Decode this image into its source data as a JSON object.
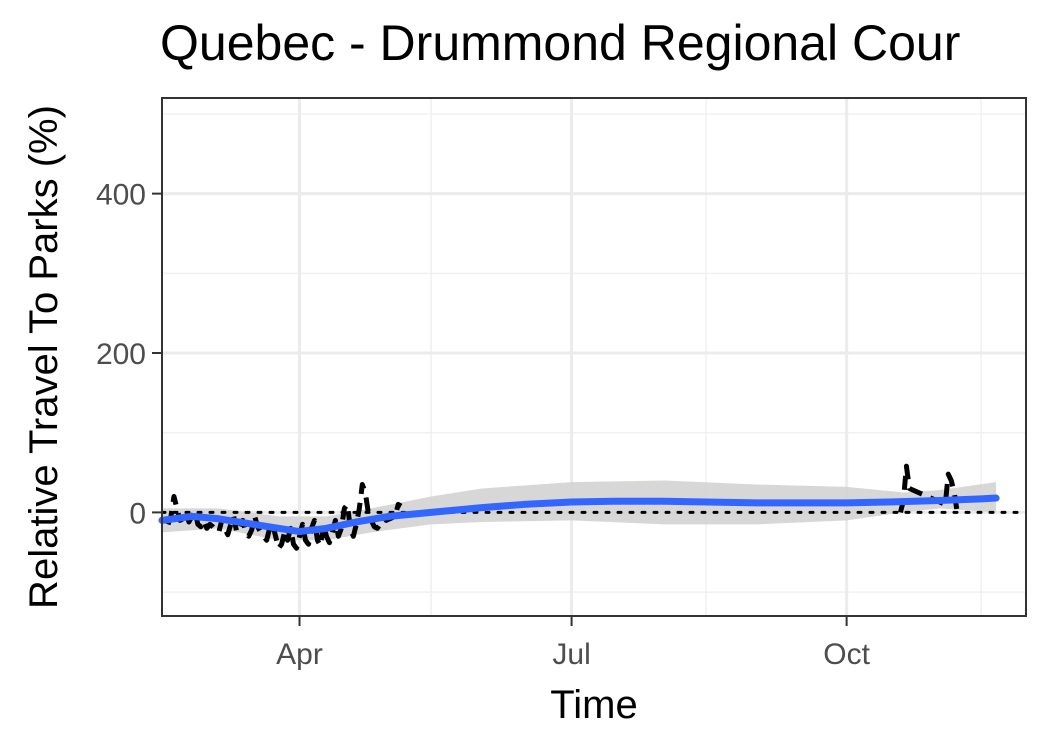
{
  "chart_data": {
    "type": "line",
    "title": "Quebec - Drummond Regional Cour",
    "xlabel": "Time",
    "ylabel": "Relative Travel To Parks (%)",
    "x_range": [
      "2020-02-15",
      "2020-11-30"
    ],
    "ylim": [
      -130,
      520
    ],
    "x_ticks": [
      {
        "date": "2020-04-01",
        "label": "Apr"
      },
      {
        "date": "2020-07-01",
        "label": "Jul"
      },
      {
        "date": "2020-10-01",
        "label": "Oct"
      }
    ],
    "x_minor_ticks": [
      "2020-02-15",
      "2020-05-15",
      "2020-08-15",
      "2020-11-15"
    ],
    "y_ticks": [
      0,
      200,
      400
    ],
    "y_minor_ticks": [
      -100,
      100,
      300,
      500
    ],
    "grid": true,
    "reference_line": {
      "y": 0,
      "style": "dotted",
      "color": "#000000"
    },
    "series": [
      {
        "role": "observed",
        "style": "dashed",
        "color": "#000000",
        "points": [
          [
            "2020-02-17",
            -15
          ],
          [
            "2020-02-18",
            -5
          ],
          [
            "2020-02-19",
            20
          ],
          [
            "2020-02-20",
            5
          ],
          [
            "2020-02-21",
            -10
          ],
          [
            "2020-02-22",
            -8
          ],
          [
            "2020-02-23",
            0
          ],
          [
            "2020-02-24",
            -12
          ],
          [
            "2020-02-25",
            -5
          ],
          [
            "2020-02-26",
            2
          ],
          [
            "2020-02-27",
            -15
          ],
          [
            "2020-02-28",
            -18
          ],
          [
            "2020-02-29",
            -10
          ],
          [
            "2020-03-01",
            -20
          ],
          [
            "2020-03-02",
            -15
          ],
          [
            "2020-03-03",
            -18
          ],
          [
            "2020-03-04",
            -22
          ],
          [
            "2020-03-05",
            -25
          ],
          [
            "2020-03-06",
            -10
          ],
          [
            "2020-03-07",
            -20
          ],
          [
            "2020-03-08",
            -28
          ],
          [
            "2020-03-09",
            -15
          ],
          [
            "2020-03-10",
            -5
          ],
          [
            "2020-03-11",
            -25
          ],
          [
            "2020-03-12",
            -20
          ],
          [
            "2020-03-13",
            -10
          ],
          [
            "2020-03-14",
            -25
          ],
          [
            "2020-03-15",
            -30
          ],
          [
            "2020-03-16",
            -22
          ],
          [
            "2020-03-17",
            -5
          ],
          [
            "2020-03-18",
            -18
          ],
          [
            "2020-03-19",
            -25
          ],
          [
            "2020-03-20",
            -30
          ],
          [
            "2020-03-21",
            -35
          ],
          [
            "2020-03-22",
            -20
          ],
          [
            "2020-03-23",
            -15
          ],
          [
            "2020-03-24",
            -30
          ],
          [
            "2020-03-25",
            -45
          ],
          [
            "2020-03-26",
            -40
          ],
          [
            "2020-03-27",
            -25
          ],
          [
            "2020-03-28",
            -35
          ],
          [
            "2020-03-29",
            -20
          ],
          [
            "2020-03-30",
            -40
          ],
          [
            "2020-03-31",
            -45
          ],
          [
            "2020-04-01",
            -30
          ],
          [
            "2020-04-02",
            -15
          ],
          [
            "2020-04-03",
            -35
          ],
          [
            "2020-04-04",
            -40
          ],
          [
            "2020-04-05",
            -20
          ],
          [
            "2020-04-06",
            -10
          ],
          [
            "2020-04-07",
            -35
          ],
          [
            "2020-04-08",
            -42
          ],
          [
            "2020-04-09",
            -15
          ],
          [
            "2020-04-10",
            -30
          ],
          [
            "2020-04-11",
            -38
          ],
          [
            "2020-04-12",
            -25
          ],
          [
            "2020-04-13",
            -10
          ],
          [
            "2020-04-14",
            -30
          ],
          [
            "2020-04-15",
            -20
          ],
          [
            "2020-04-16",
            5
          ],
          [
            "2020-04-17",
            10
          ],
          [
            "2020-04-18",
            -20
          ],
          [
            "2020-04-19",
            -30
          ],
          [
            "2020-04-20",
            -15
          ],
          [
            "2020-04-21",
            5
          ],
          [
            "2020-04-22",
            35
          ],
          [
            "2020-04-23",
            25
          ],
          [
            "2020-04-24",
            0
          ],
          [
            "2020-04-25",
            -10
          ],
          [
            "2020-04-26",
            -18
          ],
          [
            "2020-04-27",
            -20
          ],
          [
            "2020-04-28",
            -15
          ],
          [
            "2020-04-29",
            -5
          ],
          [
            "2020-04-30",
            -10
          ],
          [
            "2020-05-03",
            -5
          ],
          [
            "2020-05-04",
            10
          ],
          [
            "2020-05-05",
            8
          ]
        ],
        "points_late": [
          [
            "2020-10-19",
            0
          ],
          [
            "2020-10-20",
            15
          ],
          [
            "2020-10-21",
            58
          ],
          [
            "2020-10-22",
            30
          ],
          [
            "2020-11-03",
            10
          ],
          [
            "2020-11-04",
            48
          ],
          [
            "2020-11-05",
            40
          ],
          [
            "2020-11-06",
            25
          ],
          [
            "2020-11-07",
            0
          ],
          [
            "2020-11-08",
            -5
          ]
        ]
      },
      {
        "role": "smoothed trend",
        "style": "solid",
        "color": "#3366ff",
        "points": [
          [
            "2020-02-15",
            -10
          ],
          [
            "2020-02-25",
            -5
          ],
          [
            "2020-03-05",
            -8
          ],
          [
            "2020-03-15",
            -14
          ],
          [
            "2020-03-25",
            -20
          ],
          [
            "2020-04-01",
            -24
          ],
          [
            "2020-04-10",
            -20
          ],
          [
            "2020-04-20",
            -12
          ],
          [
            "2020-05-01",
            -5
          ],
          [
            "2020-05-15",
            0
          ],
          [
            "2020-06-01",
            6
          ],
          [
            "2020-06-15",
            10
          ],
          [
            "2020-07-01",
            13
          ],
          [
            "2020-07-15",
            14
          ],
          [
            "2020-08-01",
            14
          ],
          [
            "2020-08-15",
            13
          ],
          [
            "2020-09-01",
            12
          ],
          [
            "2020-09-15",
            12
          ],
          [
            "2020-10-01",
            12
          ],
          [
            "2020-10-15",
            13
          ],
          [
            "2020-11-01",
            15
          ],
          [
            "2020-11-15",
            17
          ],
          [
            "2020-11-20",
            18
          ]
        ]
      },
      {
        "role": "confidence band",
        "color": "#d3d3d3",
        "upper": [
          [
            "2020-02-15",
            5
          ],
          [
            "2020-03-05",
            5
          ],
          [
            "2020-03-25",
            -5
          ],
          [
            "2020-04-10",
            -5
          ],
          [
            "2020-04-25",
            5
          ],
          [
            "2020-05-15",
            20
          ],
          [
            "2020-06-01",
            30
          ],
          [
            "2020-07-01",
            38
          ],
          [
            "2020-08-01",
            40
          ],
          [
            "2020-09-01",
            35
          ],
          [
            "2020-10-01",
            32
          ],
          [
            "2020-10-20",
            25
          ],
          [
            "2020-11-01",
            28
          ],
          [
            "2020-11-20",
            38
          ]
        ],
        "lower": [
          [
            "2020-02-15",
            -25
          ],
          [
            "2020-03-05",
            -20
          ],
          [
            "2020-03-25",
            -35
          ],
          [
            "2020-04-10",
            -35
          ],
          [
            "2020-04-25",
            -25
          ],
          [
            "2020-05-15",
            -15
          ],
          [
            "2020-06-01",
            -12
          ],
          [
            "2020-07-01",
            -10
          ],
          [
            "2020-08-01",
            -15
          ],
          [
            "2020-09-01",
            -15
          ],
          [
            "2020-10-01",
            -10
          ],
          [
            "2020-10-20",
            0
          ],
          [
            "2020-11-01",
            5
          ],
          [
            "2020-11-20",
            0
          ]
        ]
      }
    ]
  }
}
